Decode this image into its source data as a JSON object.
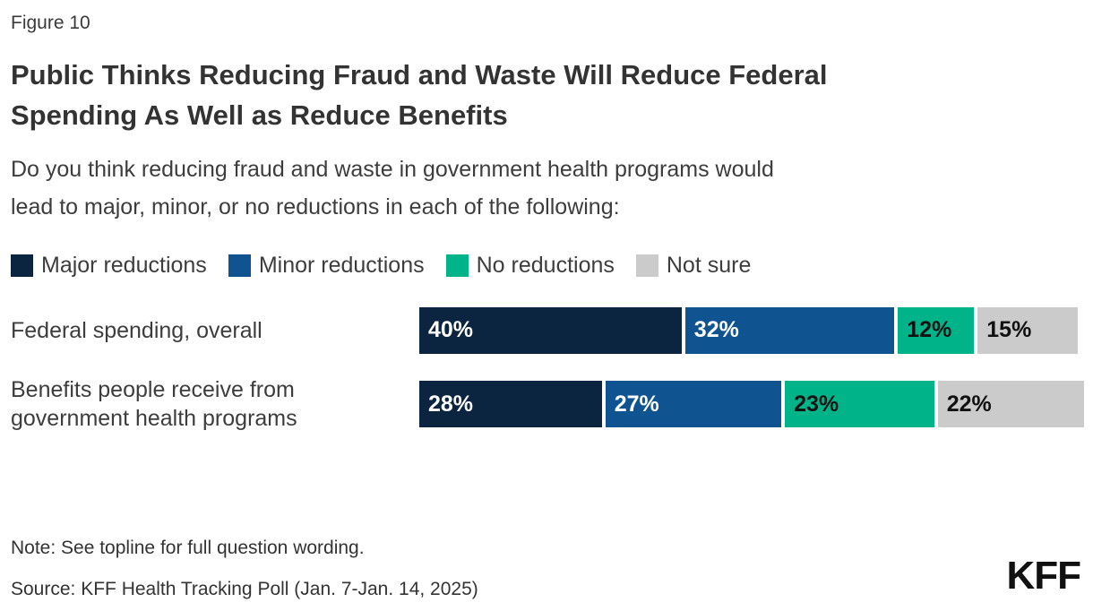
{
  "figure_label": "Figure 10",
  "title": "Public Thinks Reducing Fraud and Waste Will Reduce Federal\nSpending As Well as Reduce Benefits",
  "subtitle": "Do you think reducing fraud and waste in government health programs would\nlead to major, minor, or no reductions in each of the following:",
  "note": "Note: See topline for full question wording.",
  "source": "Source: KFF Health Tracking Poll (Jan. 7-Jan. 14, 2025)",
  "logo_text": "KFF",
  "colors": {
    "major": "#0b2540",
    "minor": "#0f5390",
    "none": "#00b389",
    "not_sure": "#cbcbcb",
    "text": "#3d3d3d"
  },
  "chart_data": {
    "type": "bar",
    "orientation": "horizontal",
    "stacked": true,
    "title": "Public Thinks Reducing Fraud and Waste Will Reduce Federal Spending As Well as Reduce Benefits",
    "categories": [
      "Federal spending, overall",
      "Benefits people receive from\ngovernment health programs"
    ],
    "series": [
      {
        "name": "Major reductions",
        "color": "#0b2540",
        "label_color": "#ffffff",
        "values": [
          40,
          28
        ]
      },
      {
        "name": "Minor reductions",
        "color": "#0f5390",
        "label_color": "#ffffff",
        "values": [
          32,
          27
        ]
      },
      {
        "name": "No reductions",
        "color": "#00b389",
        "label_color": "#111111",
        "values": [
          12,
          23
        ]
      },
      {
        "name": "Not sure",
        "color": "#cbcbcb",
        "label_color": "#111111",
        "values": [
          15,
          22
        ]
      }
    ],
    "value_suffix": "%",
    "xlim": [
      0,
      100
    ],
    "legend_position": "top",
    "grid": false
  }
}
